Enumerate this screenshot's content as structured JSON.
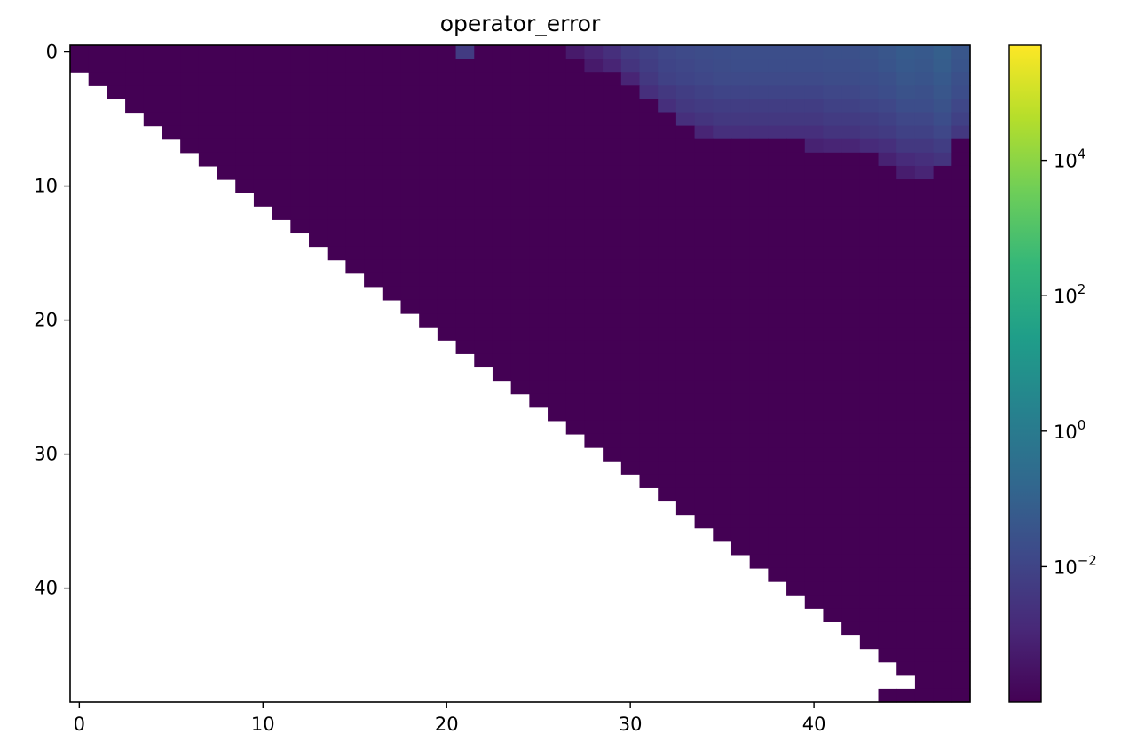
{
  "chart_data": {
    "type": "heatmap",
    "title": "operator_error",
    "xlabel": "",
    "ylabel": "",
    "grid_size": 49,
    "x_ticks": [
      0,
      10,
      20,
      30,
      40
    ],
    "y_ticks": [
      0,
      10,
      20,
      30,
      40
    ],
    "xlim": [
      -0.5,
      48.5
    ],
    "ylim": [
      48.5,
      -0.5
    ],
    "mask": "cells with j < i - 1 are empty (white); last row filled only from column 44",
    "colorscale": {
      "name": "viridis",
      "scale": "log",
      "vmin": 0.0001,
      "vmax": 500000,
      "tick_values": [
        0.01,
        1,
        100,
        10000
      ],
      "tick_labels": [
        {
          "base": "10",
          "exp": "−2"
        },
        {
          "base": "10",
          "exp": "0"
        },
        {
          "base": "10",
          "exp": "2"
        },
        {
          "base": "10",
          "exp": "4"
        }
      ],
      "colors": [
        "#440154",
        "#482878",
        "#3e4989",
        "#31688e",
        "#26828e",
        "#1f9e89",
        "#35b779",
        "#6ece58",
        "#b5de2b",
        "#fde725"
      ]
    },
    "background_value": 0.0001,
    "elevated_cells": [
      [
        0,
        21,
        0.005
      ],
      [
        0,
        27,
        0.0005
      ],
      [
        0,
        28,
        0.001
      ],
      [
        0,
        29,
        0.002
      ],
      [
        0,
        30,
        0.005
      ],
      [
        0,
        31,
        0.008
      ],
      [
        0,
        32,
        0.012
      ],
      [
        0,
        33,
        0.015
      ],
      [
        0,
        34,
        0.018
      ],
      [
        0,
        35,
        0.02
      ],
      [
        0,
        36,
        0.022
      ],
      [
        0,
        37,
        0.022
      ],
      [
        0,
        38,
        0.022
      ],
      [
        0,
        39,
        0.022
      ],
      [
        0,
        40,
        0.022
      ],
      [
        0,
        41,
        0.025
      ],
      [
        0,
        42,
        0.025
      ],
      [
        0,
        43,
        0.03
      ],
      [
        0,
        44,
        0.04
      ],
      [
        0,
        45,
        0.06
      ],
      [
        0,
        46,
        0.05
      ],
      [
        0,
        47,
        0.08
      ],
      [
        0,
        48,
        0.04
      ],
      [
        1,
        28,
        0.0005
      ],
      [
        1,
        29,
        0.001
      ],
      [
        1,
        30,
        0.003
      ],
      [
        1,
        31,
        0.006
      ],
      [
        1,
        32,
        0.01
      ],
      [
        1,
        33,
        0.012
      ],
      [
        1,
        34,
        0.015
      ],
      [
        1,
        35,
        0.018
      ],
      [
        1,
        36,
        0.02
      ],
      [
        1,
        37,
        0.02
      ],
      [
        1,
        38,
        0.02
      ],
      [
        1,
        39,
        0.02
      ],
      [
        1,
        40,
        0.02
      ],
      [
        1,
        41,
        0.022
      ],
      [
        1,
        42,
        0.022
      ],
      [
        1,
        43,
        0.025
      ],
      [
        1,
        44,
        0.035
      ],
      [
        1,
        45,
        0.05
      ],
      [
        1,
        46,
        0.045
      ],
      [
        1,
        47,
        0.07
      ],
      [
        1,
        48,
        0.035
      ],
      [
        2,
        30,
        0.001
      ],
      [
        2,
        31,
        0.004
      ],
      [
        2,
        32,
        0.008
      ],
      [
        2,
        33,
        0.01
      ],
      [
        2,
        34,
        0.012
      ],
      [
        2,
        35,
        0.015
      ],
      [
        2,
        36,
        0.015
      ],
      [
        2,
        37,
        0.015
      ],
      [
        2,
        38,
        0.015
      ],
      [
        2,
        39,
        0.015
      ],
      [
        2,
        40,
        0.015
      ],
      [
        2,
        41,
        0.018
      ],
      [
        2,
        42,
        0.018
      ],
      [
        2,
        43,
        0.02
      ],
      [
        2,
        44,
        0.025
      ],
      [
        2,
        45,
        0.04
      ],
      [
        2,
        46,
        0.035
      ],
      [
        2,
        47,
        0.05
      ],
      [
        2,
        48,
        0.025
      ],
      [
        3,
        31,
        0.002
      ],
      [
        3,
        32,
        0.004
      ],
      [
        3,
        33,
        0.006
      ],
      [
        3,
        34,
        0.008
      ],
      [
        3,
        35,
        0.01
      ],
      [
        3,
        36,
        0.01
      ],
      [
        3,
        37,
        0.01
      ],
      [
        3,
        38,
        0.01
      ],
      [
        3,
        39,
        0.01
      ],
      [
        3,
        40,
        0.01
      ],
      [
        3,
        41,
        0.012
      ],
      [
        3,
        42,
        0.012
      ],
      [
        3,
        43,
        0.015
      ],
      [
        3,
        44,
        0.02
      ],
      [
        3,
        45,
        0.03
      ],
      [
        3,
        46,
        0.025
      ],
      [
        3,
        47,
        0.04
      ],
      [
        3,
        48,
        0.02
      ],
      [
        4,
        32,
        0.002
      ],
      [
        4,
        33,
        0.004
      ],
      [
        4,
        34,
        0.005
      ],
      [
        4,
        35,
        0.006
      ],
      [
        4,
        36,
        0.006
      ],
      [
        4,
        37,
        0.006
      ],
      [
        4,
        38,
        0.006
      ],
      [
        4,
        39,
        0.006
      ],
      [
        4,
        40,
        0.006
      ],
      [
        4,
        41,
        0.008
      ],
      [
        4,
        42,
        0.008
      ],
      [
        4,
        43,
        0.01
      ],
      [
        4,
        44,
        0.012
      ],
      [
        4,
        45,
        0.02
      ],
      [
        4,
        46,
        0.02
      ],
      [
        4,
        47,
        0.03
      ],
      [
        4,
        48,
        0.012
      ],
      [
        5,
        33,
        0.002
      ],
      [
        5,
        34,
        0.003
      ],
      [
        5,
        35,
        0.004
      ],
      [
        5,
        36,
        0.004
      ],
      [
        5,
        37,
        0.004
      ],
      [
        5,
        38,
        0.004
      ],
      [
        5,
        39,
        0.004
      ],
      [
        5,
        40,
        0.004
      ],
      [
        5,
        41,
        0.005
      ],
      [
        5,
        42,
        0.005
      ],
      [
        5,
        43,
        0.006
      ],
      [
        5,
        44,
        0.008
      ],
      [
        5,
        45,
        0.012
      ],
      [
        5,
        46,
        0.012
      ],
      [
        5,
        47,
        0.02
      ],
      [
        5,
        48,
        0.008
      ],
      [
        6,
        34,
        0.001
      ],
      [
        6,
        35,
        0.002
      ],
      [
        6,
        36,
        0.002
      ],
      [
        6,
        37,
        0.002
      ],
      [
        6,
        38,
        0.002
      ],
      [
        6,
        39,
        0.002
      ],
      [
        6,
        40,
        0.002
      ],
      [
        6,
        41,
        0.003
      ],
      [
        6,
        42,
        0.003
      ],
      [
        6,
        43,
        0.004
      ],
      [
        6,
        44,
        0.005
      ],
      [
        6,
        45,
        0.008
      ],
      [
        6,
        46,
        0.008
      ],
      [
        6,
        47,
        0.012
      ],
      [
        6,
        48,
        0.004
      ],
      [
        7,
        40,
        0.0008
      ],
      [
        7,
        41,
        0.001
      ],
      [
        7,
        42,
        0.001
      ],
      [
        7,
        43,
        0.0015
      ],
      [
        7,
        44,
        0.002
      ],
      [
        7,
        45,
        0.004
      ],
      [
        7,
        46,
        0.004
      ],
      [
        7,
        47,
        0.006
      ],
      [
        8,
        44,
        0.0008
      ],
      [
        8,
        45,
        0.0015
      ],
      [
        8,
        46,
        0.002
      ],
      [
        8,
        47,
        0.003
      ],
      [
        9,
        45,
        0.0006
      ],
      [
        9,
        46,
        0.001
      ]
    ]
  }
}
